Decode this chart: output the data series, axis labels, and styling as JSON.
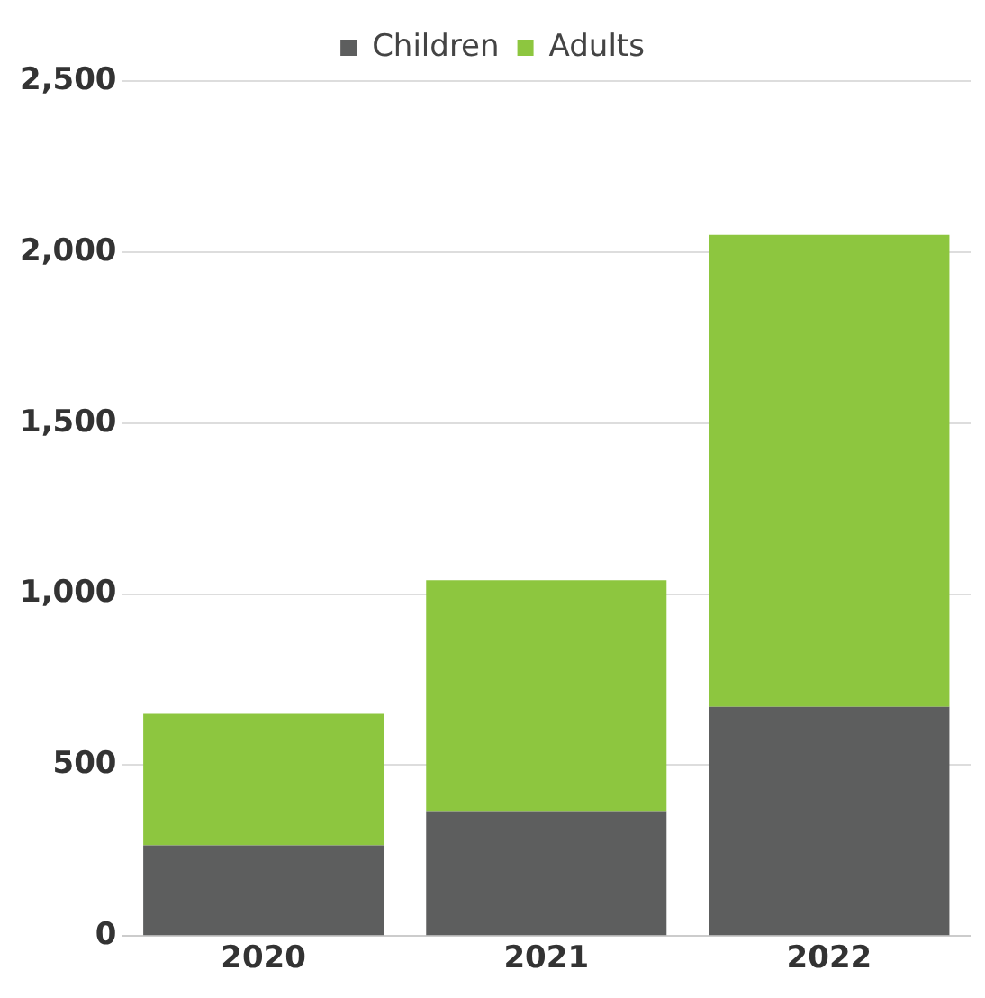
{
  "chart_data": {
    "type": "bar",
    "stacked": true,
    "categories": [
      "2020",
      "2021",
      "2022"
    ],
    "series": [
      {
        "name": "Children",
        "color": "#5d5e5e",
        "values": [
          265,
          365,
          670
        ]
      },
      {
        "name": "Adults",
        "color": "#8dc63f",
        "values": [
          385,
          675,
          1380
        ]
      }
    ],
    "ylim": [
      0,
      2500
    ],
    "yticks": [
      0,
      500,
      {
        "value": 1000,
        "label": "1,000"
      },
      {
        "value": 1500,
        "label": "1,500"
      },
      {
        "value": 2000,
        "label": "2,000"
      },
      {
        "value": 2500,
        "label": "2,500"
      }
    ],
    "grid": "y",
    "legend": "top"
  }
}
